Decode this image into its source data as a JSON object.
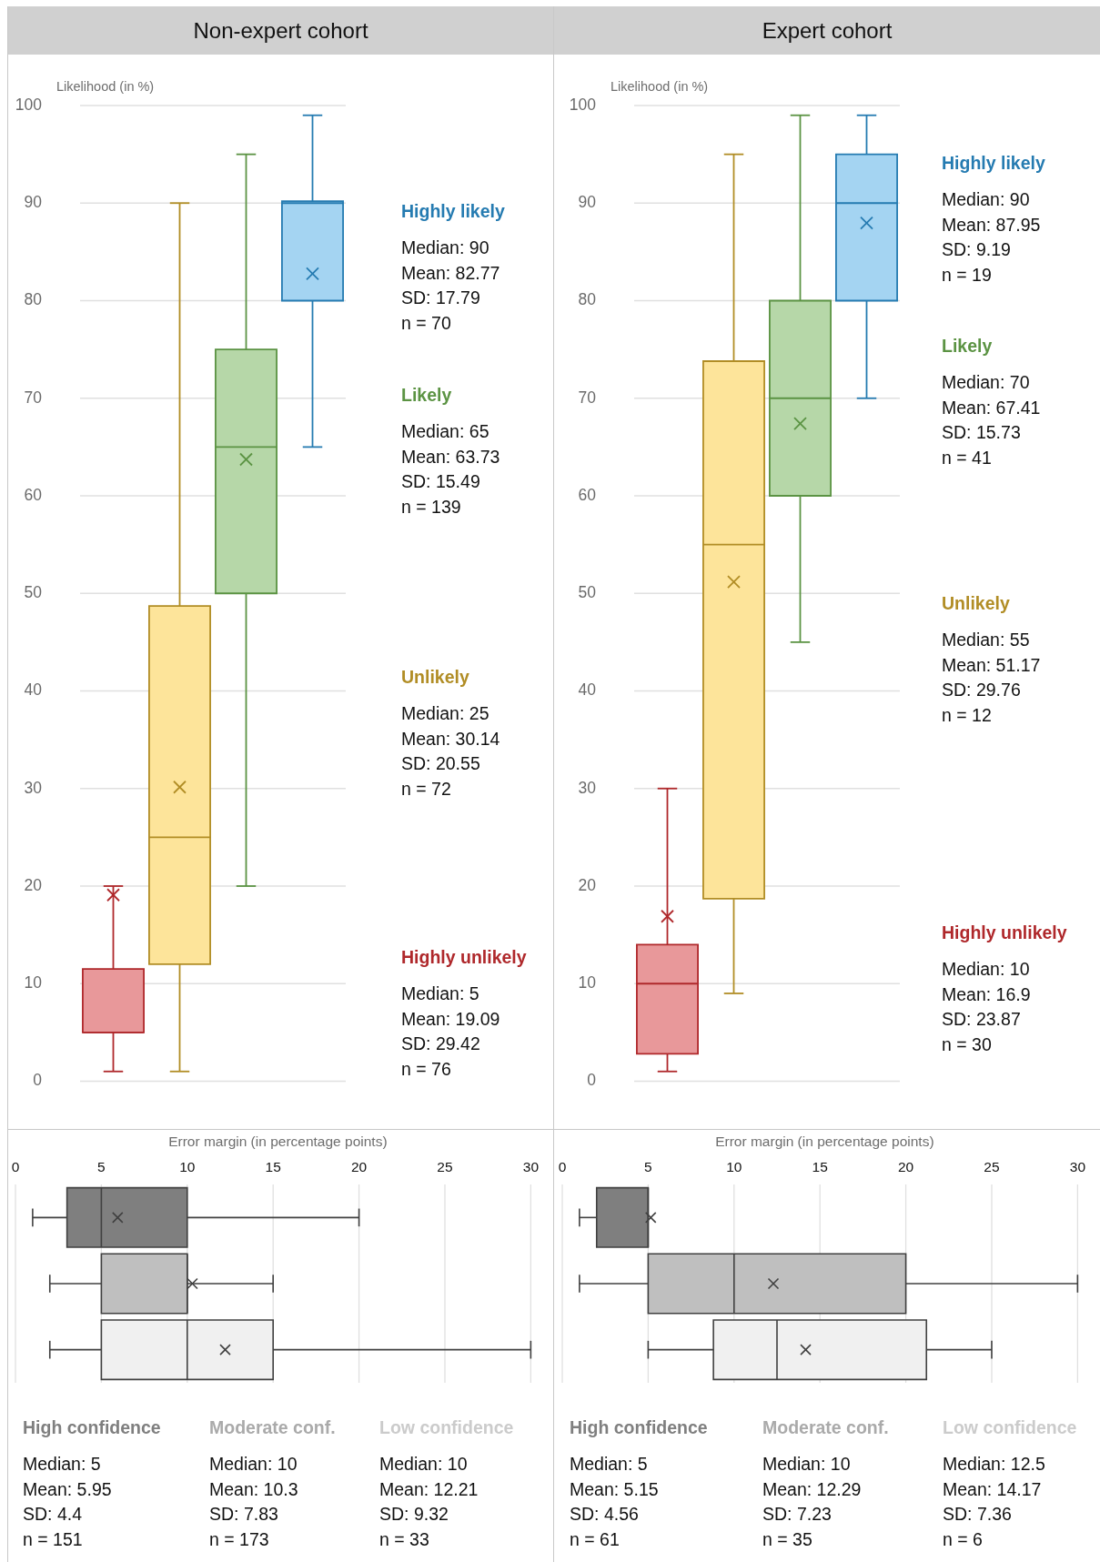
{
  "chart_data": [
    {
      "type": "box",
      "title": "Non-expert cohort",
      "ylabel": "Likelihood (in %)",
      "categories": [
        null,
        null,
        null,
        null
      ],
      "boxes": [
        {
          "low": 1,
          "q1": 5,
          "median": 5,
          "q3": 11.5,
          "high": 20,
          "mean": 19.09
        },
        {
          "low": 1,
          "q1": 12,
          "median": 25,
          "q3": 48.7,
          "high": 90,
          "mean": 30.14
        },
        {
          "low": 20,
          "q1": 50,
          "median": 65,
          "q3": 75,
          "high": 95,
          "mean": 63.73
        },
        {
          "low": 65,
          "q1": 80,
          "median": 90,
          "q3": 90.2,
          "high": 99,
          "mean": 82.77
        }
      ],
      "colors": [
        "#e8989a",
        "#fde49a",
        "#b6d7a8",
        "#a4d4f2"
      ],
      "ylim": [
        0,
        100
      ],
      "yticks": [
        0,
        10,
        20,
        30,
        40,
        50,
        60,
        70,
        80,
        90,
        100
      ],
      "grid": "y",
      "tick_labels": "y",
      "annotations": [
        "Highly unlikely\nMedian: 5\nMean: 19.09\nSD: 29.42\nn = 76",
        "Unlikely\nMedian: 25\nMean: 30.14\nSD: 20.55\nn = 72",
        "Likely\nMedian: 65\nMean: 63.73\nSD: 15.49\nn = 139",
        "Highly likely\nMedian: 90\nMean: 82.77\nSD: 17.79\nn = 70"
      ]
    },
    {
      "type": "box",
      "title": "Expert cohort",
      "ylabel": "Likelihood (in %)",
      "categories": [
        null,
        null,
        null,
        null
      ],
      "boxes": [
        {
          "low": 1,
          "q1": 2.8,
          "median": 10,
          "q3": 14,
          "high": 30,
          "mean": 16.9
        },
        {
          "low": 9,
          "q1": 18.7,
          "median": 55,
          "q3": 73.8,
          "high": 95,
          "mean": 51.17
        },
        {
          "low": 45,
          "q1": 60,
          "median": 70,
          "q3": 80,
          "high": 99,
          "mean": 67.41
        },
        {
          "low": 70,
          "q1": 80,
          "median": 90,
          "q3": 95,
          "high": 99,
          "mean": 87.95
        }
      ],
      "colors": [
        "#e8989a",
        "#fde49a",
        "#b6d7a8",
        "#a4d4f2"
      ],
      "ylim": [
        0,
        100
      ],
      "yticks": [
        0,
        10,
        20,
        30,
        40,
        50,
        60,
        70,
        80,
        90,
        100
      ],
      "grid": "y",
      "tick_labels": "y",
      "annotations": [
        "Highly unlikely\nMedian: 10\nMean: 16.9\nSD: 23.87\nn = 30",
        "Unlikely\nMedian: 55\nMean: 51.17\nSD: 29.76\nn = 12",
        "Likely\nMedian: 70\nMean: 67.41\nSD: 15.73\nn = 41",
        "Highly likely\nMedian: 90\nMean: 87.95\nSD: 9.19\nn = 19"
      ]
    },
    {
      "type": "box",
      "orientation": "horizontal",
      "xlabel": "Error margin (in percentage points)",
      "categories": [
        null,
        null,
        null
      ],
      "boxes": [
        {
          "low": 1,
          "q1": 3,
          "median": 5,
          "q3": 10,
          "high": 20,
          "mean": 5.95
        },
        {
          "low": 2,
          "q1": 5,
          "median": 10,
          "q3": 10,
          "high": 15,
          "mean": 10.3
        },
        {
          "low": 2,
          "q1": 5,
          "median": 10,
          "q3": 15,
          "high": 30,
          "mean": 12.21
        }
      ],
      "colors": [
        "#7f7f7f",
        "#bfbfbf",
        "#f0f0f0"
      ],
      "xlim": [
        0,
        30
      ],
      "xticks": [
        0,
        5,
        10,
        15,
        20,
        25,
        30
      ],
      "grid": "x",
      "tick_labels": "x",
      "annotations": [
        "High confidence\nMedian: 5\nMean: 5.95\nSD: 4.4\nn = 151",
        "Moderate conf.\nMedian: 10\nMean: 10.3\nSD: 7.83\nn = 173",
        "Low confidence\nMedian: 10\nMean: 12.21\nSD: 9.32\nn = 33"
      ]
    },
    {
      "type": "box",
      "orientation": "horizontal",
      "xlabel": "Error margin (in percentage points)",
      "categories": [
        null,
        null,
        null
      ],
      "boxes": [
        {
          "low": 1,
          "q1": 2,
          "median": 5,
          "q3": 5,
          "high": 5,
          "mean": 5.15
        },
        {
          "low": 1,
          "q1": 5,
          "median": 10,
          "q3": 20,
          "high": 30,
          "mean": 12.29
        },
        {
          "low": 5,
          "q1": 8.8,
          "median": 12.5,
          "q3": 21.2,
          "high": 25,
          "mean": 14.17
        }
      ],
      "colors": [
        "#7f7f7f",
        "#bfbfbf",
        "#f0f0f0"
      ],
      "xlim": [
        0,
        30
      ],
      "xticks": [
        0,
        5,
        10,
        15,
        20,
        25,
        30
      ],
      "grid": "x",
      "tick_labels": "x",
      "annotations": [
        "High confidence\nMedian: 5\nMean: 5.15\nSD: 4.56\nn = 61",
        "Moderate conf.\nMedian: 10\nMean: 12.29\nSD: 7.23\nn = 35",
        "Low confidence\nMedian: 12.5\nMean: 14.17\nSD: 7.36\nn = 6"
      ]
    }
  ]
}
